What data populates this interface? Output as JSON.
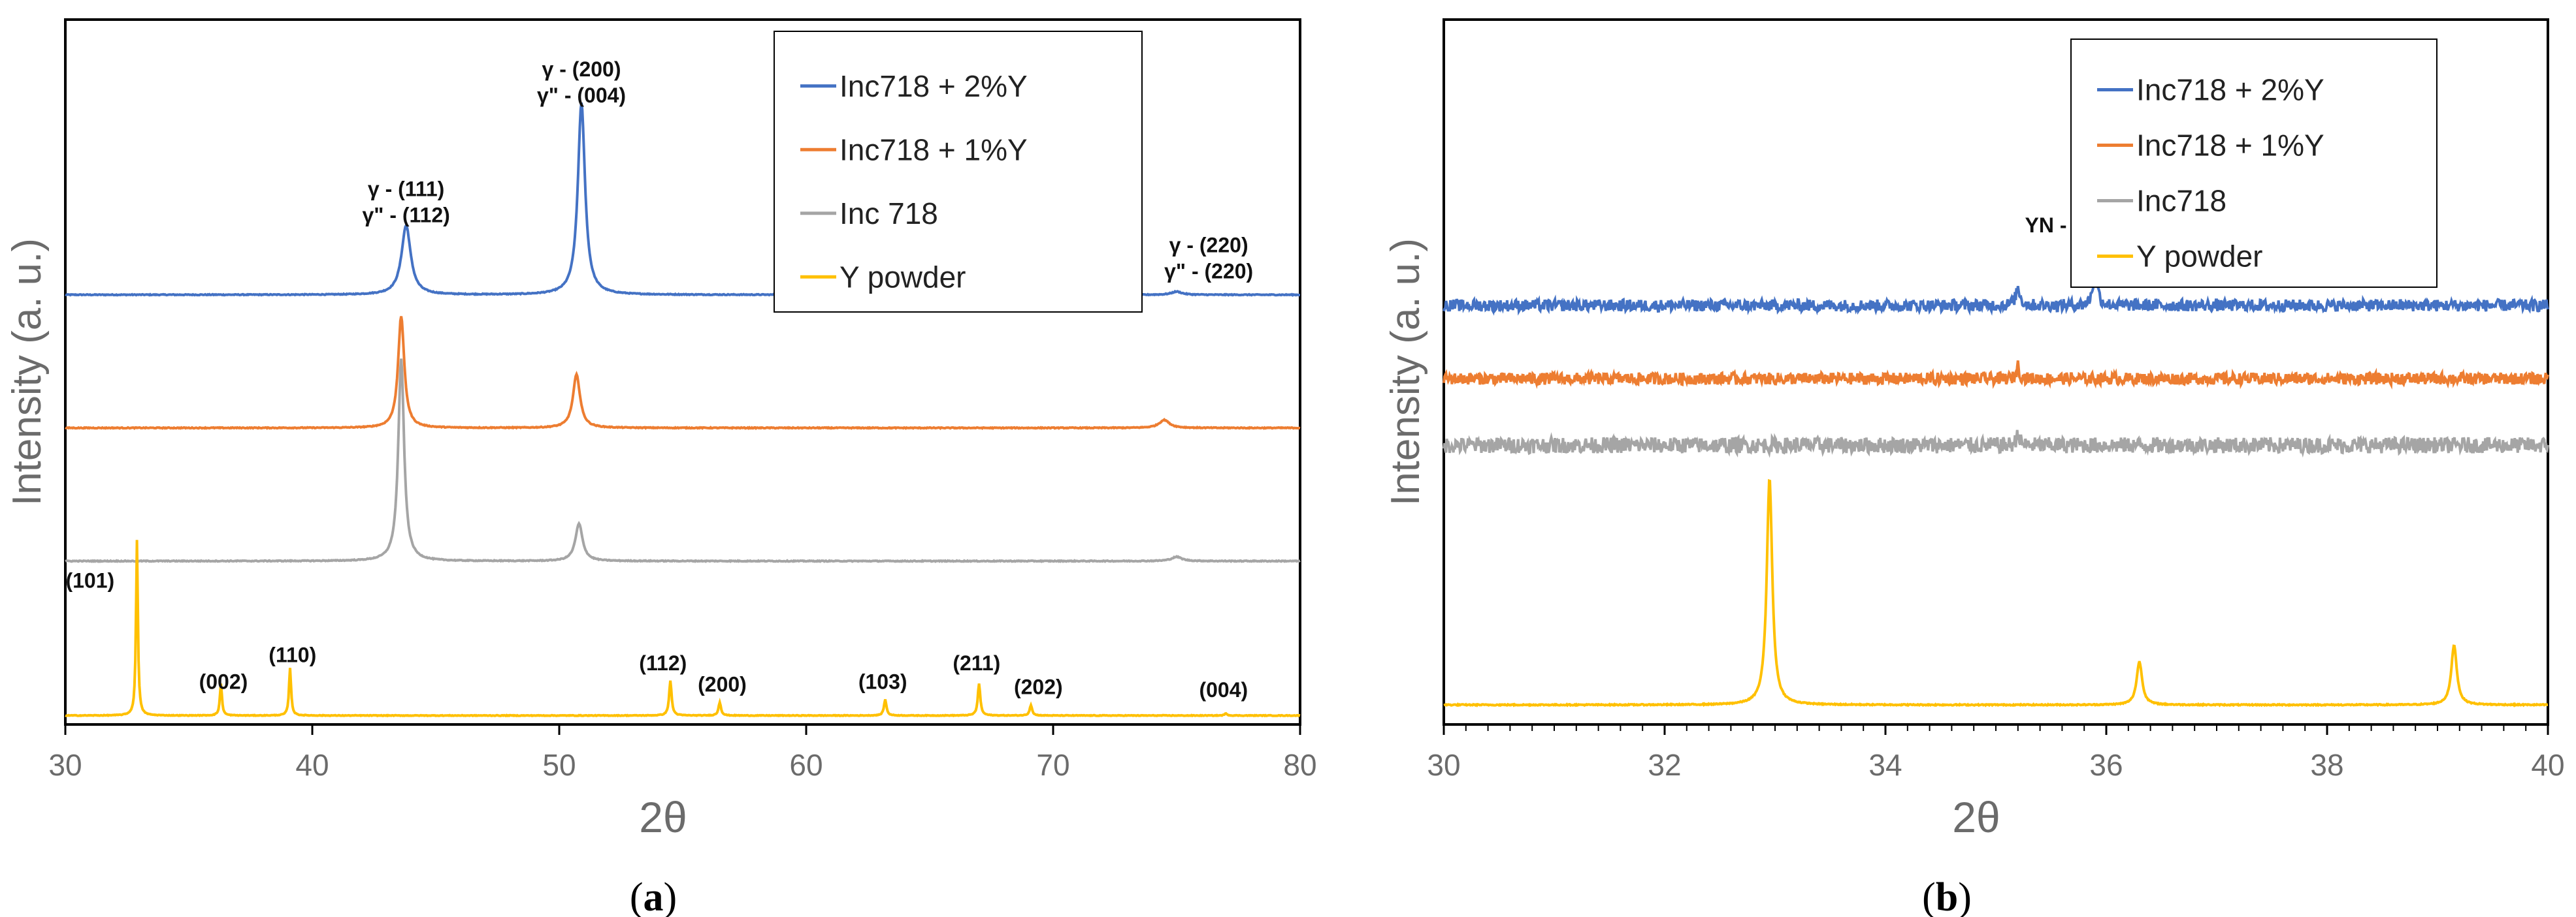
{
  "chart_data": [
    {
      "type": "line",
      "panel_label": "(a)",
      "xlabel": "2θ",
      "ylabel": "Intensity (a. u.)",
      "xlim": [
        30,
        80
      ],
      "xticks": [
        "30",
        "40",
        "50",
        "60",
        "70",
        "80"
      ],
      "legend_position": "top-right",
      "series": [
        {
          "name": "Inc718 + 2%Y",
          "color": "#4472c4",
          "baseline": 0.77,
          "peaks": [
            [
              43.8,
              0.13,
              0.45
            ],
            [
              50.9,
              0.36,
              0.35
            ],
            [
              75.0,
              0.006,
              0.5
            ]
          ],
          "noise": 0.0008
        },
        {
          "name": "Inc718 + 1%Y",
          "color": "#ed7d31",
          "baseline": 0.52,
          "peaks": [
            [
              43.6,
              0.21,
              0.3
            ],
            [
              50.7,
              0.1,
              0.35
            ],
            [
              74.5,
              0.015,
              0.5
            ]
          ],
          "noise": 0.0008
        },
        {
          "name": "Inc 718",
          "color": "#a5a5a5",
          "baseline": 0.27,
          "peaks": [
            [
              43.6,
              0.38,
              0.28
            ],
            [
              50.8,
              0.07,
              0.35
            ],
            [
              75.0,
              0.008,
              0.5
            ]
          ],
          "noise": 0.0008
        },
        {
          "name": "Y powder",
          "color": "#ffc000",
          "baseline": -0.02,
          "peaks": [
            [
              32.9,
              0.33,
              0.09
            ],
            [
              36.3,
              0.06,
              0.1
            ],
            [
              39.1,
              0.09,
              0.1
            ],
            [
              54.5,
              0.065,
              0.12
            ],
            [
              56.5,
              0.025,
              0.12
            ],
            [
              63.2,
              0.03,
              0.12
            ],
            [
              67.0,
              0.06,
              0.12
            ],
            [
              69.1,
              0.02,
              0.12
            ],
            [
              77.0,
              0.004,
              0.12
            ]
          ],
          "noise": 0.0006
        }
      ],
      "annotations": [
        {
          "lines": [
            "γ - (111)",
            "γ\" - (112)"
          ],
          "x": 43.8,
          "y": 0.955
        },
        {
          "lines": [
            "γ - (200)",
            "γ\" - (004)"
          ],
          "x": 50.9,
          "y": 1.18
        },
        {
          "lines": [
            "γ - (220)",
            "γ\" - (220)"
          ],
          "x": 76.3,
          "y": 0.85
        },
        {
          "lines": [
            "(101)"
          ],
          "x": 31.0,
          "y": 0.22
        },
        {
          "lines": [
            "(002)"
          ],
          "x": 36.4,
          "y": 0.03
        },
        {
          "lines": [
            "(110)"
          ],
          "x": 39.2,
          "y": 0.08
        },
        {
          "lines": [
            "(112)"
          ],
          "x": 54.2,
          "y": 0.065
        },
        {
          "lines": [
            "(200)"
          ],
          "x": 56.6,
          "y": 0.025
        },
        {
          "lines": [
            "(103)"
          ],
          "x": 63.1,
          "y": 0.03
        },
        {
          "lines": [
            "(211)"
          ],
          "x": 66.9,
          "y": 0.065
        },
        {
          "lines": [
            "(202)"
          ],
          "x": 69.4,
          "y": 0.02
        },
        {
          "lines": [
            "(004)"
          ],
          "x": 76.9,
          "y": 0.015
        }
      ]
    },
    {
      "type": "line",
      "panel_label": "(b)",
      "xlabel": "2θ",
      "ylabel": "Intensity (a. u.)",
      "xlim": [
        30,
        40
      ],
      "xticks": [
        "30",
        "32",
        "34",
        "36",
        "38",
        "40"
      ],
      "legend_position": "top-right",
      "series": [
        {
          "name": "Inc718 + 2%Y",
          "color": "#4472c4",
          "baseline": 0.6,
          "peaks": [
            [
              35.9,
              0.05,
              0.05
            ],
            [
              35.2,
              0.025,
              0.05
            ]
          ],
          "noise": 0.009
        },
        {
          "name": "Inc718 + 1%Y",
          "color": "#ed7d31",
          "baseline": 0.49,
          "peaks": [
            [
              35.2,
              0.02,
              0.03
            ]
          ],
          "noise": 0.009
        },
        {
          "name": "Inc718",
          "color": "#a5a5a5",
          "baseline": 0.39,
          "peaks": [
            [
              35.2,
              0.02,
              0.03
            ]
          ],
          "noise": 0.012
        },
        {
          "name": "Y powder",
          "color": "#ffc000",
          "baseline": 0.0,
          "peaks": [
            [
              32.95,
              0.34,
              0.06
            ],
            [
              36.3,
              0.065,
              0.06
            ],
            [
              39.15,
              0.09,
              0.06
            ]
          ],
          "noise": 0.0008
        }
      ],
      "annotations": [
        {
          "lines": [
            "YN - (200)"
          ],
          "x": 35.7,
          "y": 0.71
        }
      ]
    }
  ]
}
